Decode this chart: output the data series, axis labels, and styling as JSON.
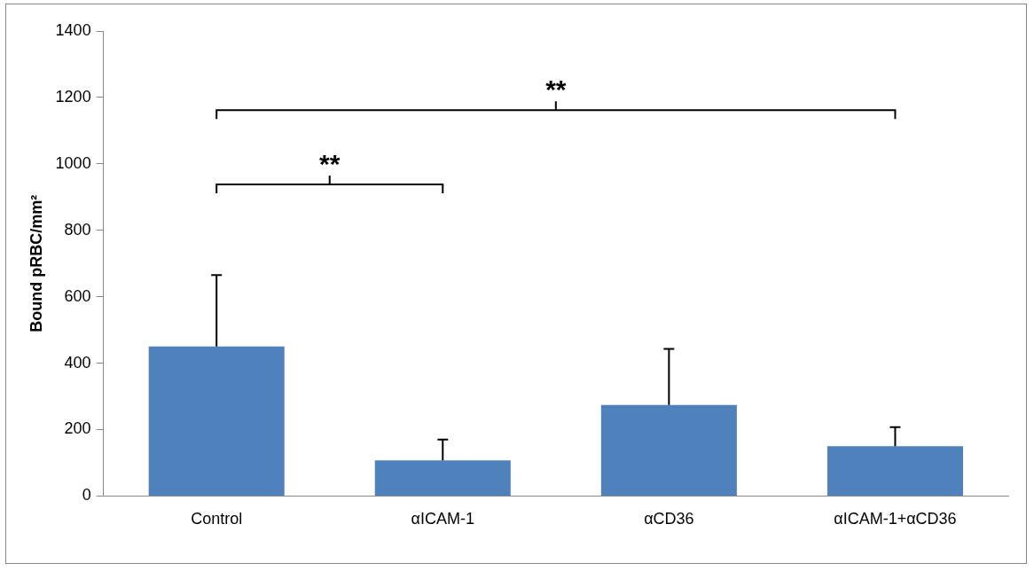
{
  "chart_data": {
    "type": "bar",
    "ylabel": "Bound pRBC/mm²",
    "categories": [
      "Control",
      "αICAM-1",
      "αCD36",
      "αICAM-1+αCD36"
    ],
    "values": [
      450,
      107,
      274,
      150
    ],
    "errors": [
      [
        450,
        665
      ],
      [
        107,
        170
      ],
      [
        274,
        443
      ],
      [
        150,
        207
      ]
    ],
    "color": "#4f81bd",
    "ylim": [
      0,
      1400
    ],
    "yticks": [
      0,
      200,
      400,
      600,
      800,
      1000,
      1200,
      1400
    ],
    "grid": false,
    "legend": false,
    "annotations": [
      "**",
      "**"
    ]
  }
}
